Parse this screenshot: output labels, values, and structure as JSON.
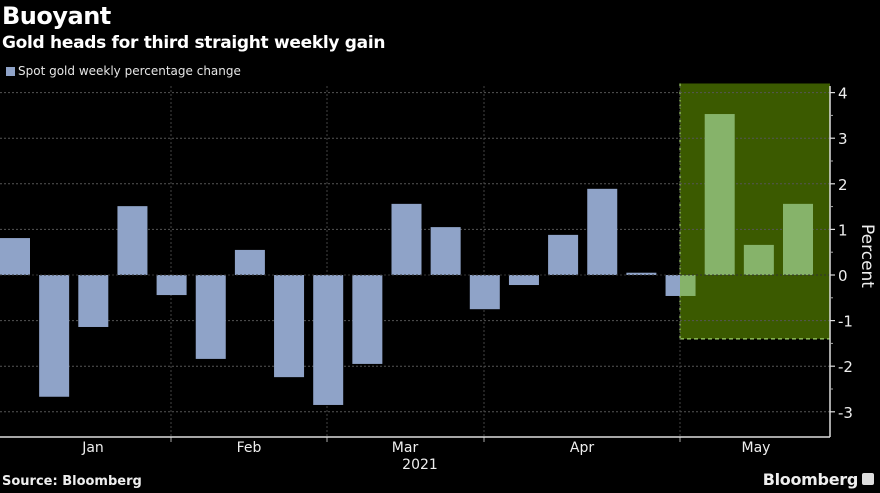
{
  "header": {
    "title": "Buoyant",
    "subtitle": "Gold heads for third straight weekly gain"
  },
  "legend": {
    "label": "Spot gold weekly percentage change",
    "color": "#8fa3c8"
  },
  "footer": {
    "source": "Source: Bloomberg",
    "brand": "Bloomberg"
  },
  "chart_data": {
    "type": "bar",
    "title": "Buoyant",
    "subtitle": "Gold heads for third straight weekly gain",
    "xlabel": "2021",
    "ylabel": "Percent",
    "ylim": [
      -3.5,
      4.2
    ],
    "yticks": [
      4,
      3,
      2,
      1,
      0,
      -1,
      -2,
      -3
    ],
    "ytick_labels": [
      "4",
      "3",
      "2",
      "1",
      "0",
      "-1",
      "-2",
      "-3"
    ],
    "x_month_labels": [
      "Jan",
      "Feb",
      "Mar",
      "Apr",
      "May"
    ],
    "year_label": "2021",
    "grid": true,
    "legend_position": "top-left",
    "highlight": {
      "start_index": 17,
      "end_index": 20,
      "ymin": -1.4,
      "ymax": 4.2,
      "color": "#3b5a00"
    },
    "series": [
      {
        "name": "Spot gold weekly percentage change",
        "color": "#8fa3c8",
        "highlight_color": "#86b36a",
        "values": [
          0.81,
          -2.67,
          -1.14,
          1.51,
          -0.44,
          -1.84,
          0.55,
          -2.24,
          -2.85,
          -1.95,
          1.56,
          1.05,
          -0.75,
          -0.22,
          0.88,
          1.89,
          0.05,
          -0.46,
          3.53,
          0.66,
          1.56
        ]
      }
    ]
  }
}
